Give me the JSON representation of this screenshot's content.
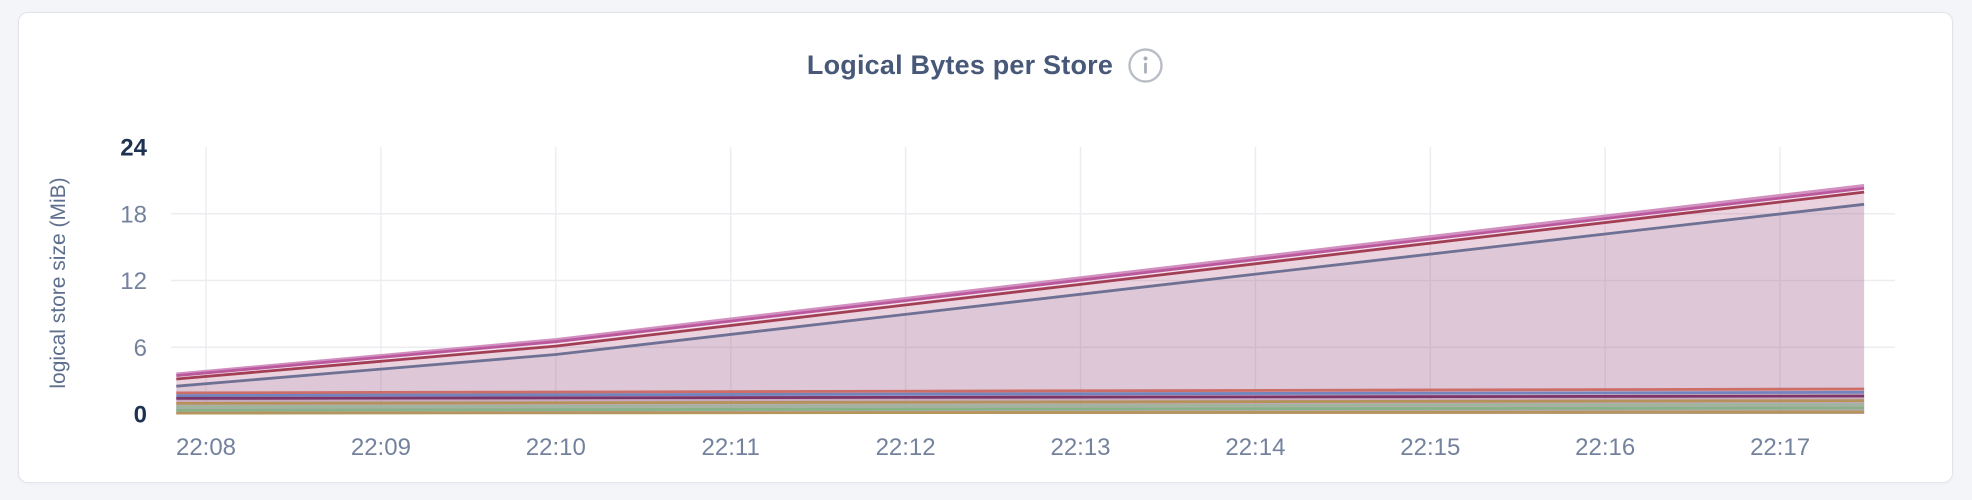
{
  "page": {
    "background_color": "#f4f5f9",
    "card_background_color": "#ffffff",
    "card_border_color": "#e2e4e9"
  },
  "header": {
    "title": "Logical Bytes per Store",
    "info_icon": "info-icon"
  },
  "chart_data": {
    "type": "area",
    "title": "Logical Bytes per Store",
    "xlabel": "",
    "ylabel": "logical store size (MiB)",
    "ylim": [
      0,
      24
    ],
    "y_ticks": [
      0,
      6,
      12,
      18,
      24
    ],
    "y_tick_labels": [
      "0",
      "6",
      "12",
      "18",
      "24"
    ],
    "y_emphasized_ticks": [
      0,
      24
    ],
    "x_domain_minutes": [
      7.83,
      17.48
    ],
    "x_ticks": [
      {
        "m": 8,
        "label": "22:08"
      },
      {
        "m": 9,
        "label": "22:09"
      },
      {
        "m": 10,
        "label": "22:10"
      },
      {
        "m": 11,
        "label": "22:11"
      },
      {
        "m": 12,
        "label": "22:12"
      },
      {
        "m": 13,
        "label": "22:13"
      },
      {
        "m": 14,
        "label": "22:14"
      },
      {
        "m": 15,
        "label": "22:15"
      },
      {
        "m": 16,
        "label": "22:16"
      },
      {
        "m": 17,
        "label": "22:17"
      }
    ],
    "grid": true,
    "legend": "none",
    "style": {
      "title_color": "#475878",
      "grid_color": "#ecedf0",
      "tick_label_color": "#74829d",
      "tick_label_emphasis_color": "#1e3252",
      "ylabel_color": "#5e6f8e",
      "info_icon_color": "#b9bdc5",
      "line_width": 2.8
    },
    "series": [
      {
        "name": "series-1",
        "color": "#d290c1",
        "fill_opacity": 0.1,
        "points": [
          [
            7.83,
            3.6
          ],
          [
            10.0,
            6.7
          ],
          [
            17.48,
            20.55
          ]
        ]
      },
      {
        "name": "series-2",
        "color": "#bb589c",
        "fill_opacity": 0.1,
        "points": [
          [
            7.83,
            3.45
          ],
          [
            10.0,
            6.5
          ],
          [
            17.48,
            20.3
          ]
        ]
      },
      {
        "name": "series-3",
        "color": "#a23f55",
        "fill_opacity": 0.1,
        "points": [
          [
            7.83,
            3.15
          ],
          [
            10.0,
            6.1
          ],
          [
            17.48,
            19.95
          ]
        ]
      },
      {
        "name": "series-4",
        "color": "#6f7194",
        "fill_opacity": 0.1,
        "points": [
          [
            7.83,
            2.5
          ],
          [
            10.0,
            5.35
          ],
          [
            17.48,
            18.85
          ]
        ]
      },
      {
        "name": "series-5",
        "color": "#cc6d68",
        "fill_opacity": 0.1,
        "points": [
          [
            7.83,
            1.9
          ],
          [
            17.48,
            2.25
          ]
        ]
      },
      {
        "name": "series-6",
        "color": "#7383bd",
        "fill_opacity": 0.1,
        "points": [
          [
            7.83,
            1.65
          ],
          [
            17.48,
            1.95
          ]
        ]
      },
      {
        "name": "series-7",
        "color": "#7c3569",
        "fill_opacity": 0.1,
        "points": [
          [
            7.83,
            1.4
          ],
          [
            17.48,
            1.62
          ]
        ]
      },
      {
        "name": "series-8",
        "color": "#b4935b",
        "fill_opacity": 0.1,
        "points": [
          [
            7.83,
            0.95
          ],
          [
            17.48,
            1.2
          ]
        ]
      },
      {
        "name": "series-9",
        "color": "#9eb69e",
        "fill_opacity": 0.1,
        "points": [
          [
            7.83,
            0.65
          ],
          [
            17.48,
            0.85
          ]
        ]
      },
      {
        "name": "series-10",
        "color": "#87b287",
        "fill_opacity": 0.1,
        "points": [
          [
            7.83,
            0.35
          ],
          [
            17.48,
            0.55
          ]
        ]
      },
      {
        "name": "series-11",
        "color": "#b6955c",
        "fill_opacity": 0.1,
        "points": [
          [
            7.83,
            0.08
          ],
          [
            17.48,
            0.18
          ]
        ]
      }
    ]
  }
}
